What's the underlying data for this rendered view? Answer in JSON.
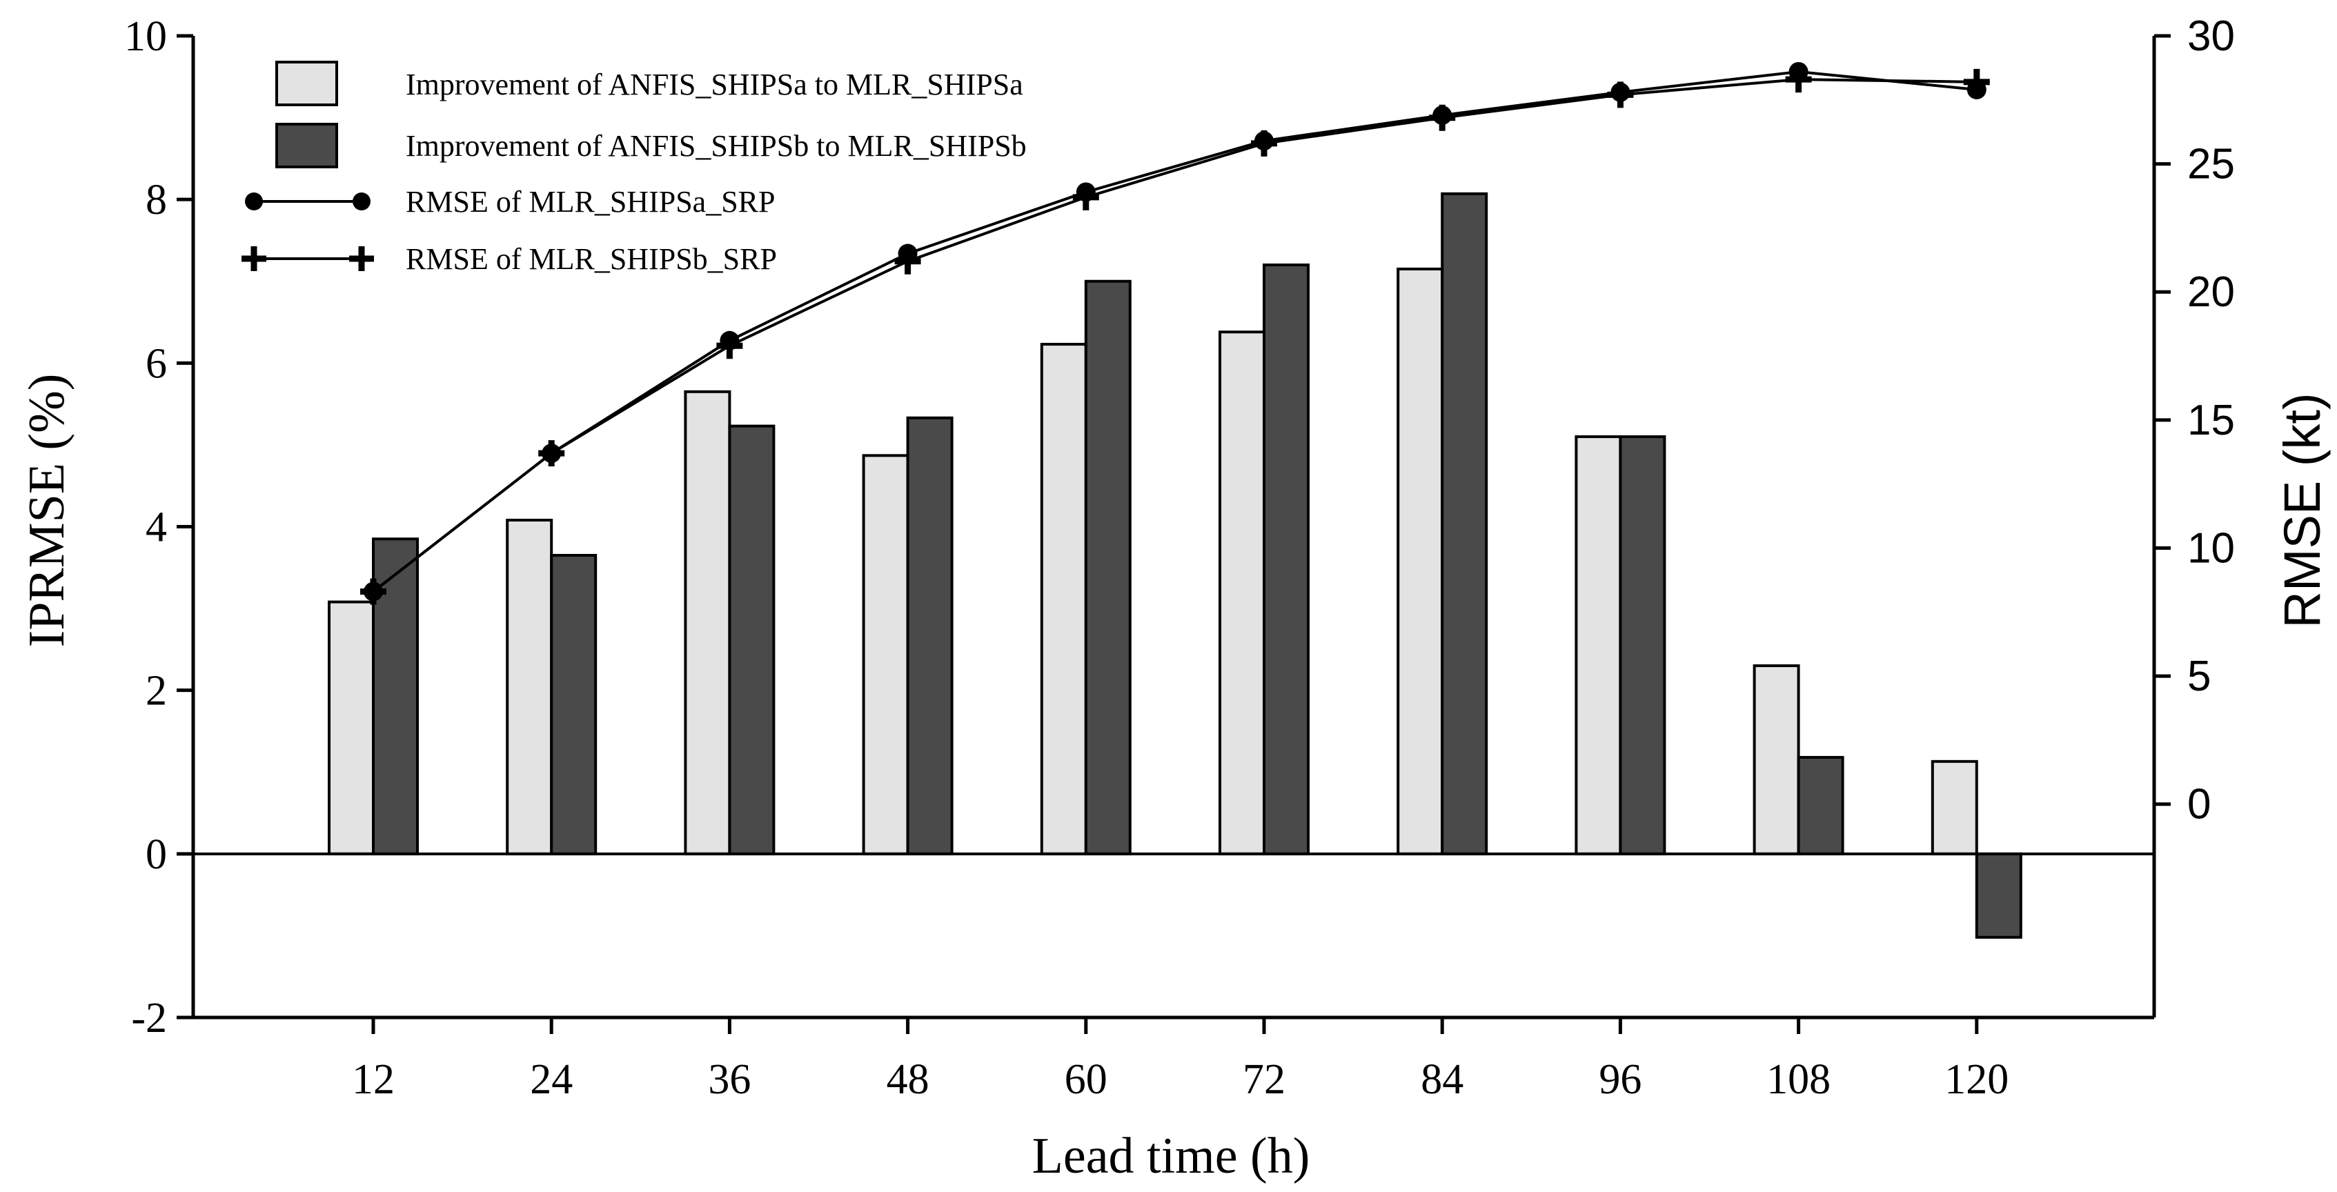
{
  "chart_data": {
    "type": "bar",
    "title": "",
    "xlabel": "Lead time (h)",
    "ylabel": "IPRMSE (%)",
    "y2label": "RMSE (kt)",
    "categories": [
      "12",
      "24",
      "36",
      "48",
      "60",
      "72",
      "84",
      "96",
      "108",
      "120"
    ],
    "ylim": [
      -2,
      10
    ],
    "yticks": [
      "-2",
      "0",
      "2",
      "4",
      "6",
      "8",
      "10"
    ],
    "y2lim": [
      -8.33,
      30
    ],
    "y2ticks": [
      "0",
      "5",
      "10",
      "15",
      "20",
      "25",
      "30"
    ],
    "grid": false,
    "legend_position": "top-left",
    "series": [
      {
        "name": "Improvement of ANFIS_SHIPSa to MLR_SHIPSa",
        "kind": "bar",
        "axis": "left",
        "color": "#e3e3e3",
        "values": [
          3.08,
          4.08,
          5.65,
          4.87,
          6.23,
          6.38,
          7.15,
          5.1,
          2.3,
          1.13
        ]
      },
      {
        "name": "Improvement of ANFIS_SHIPSb to MLR_SHIPSb",
        "kind": "bar",
        "axis": "right",
        "color": "#4a4a4a",
        "values": [
          3.85,
          3.65,
          5.23,
          5.33,
          7.0,
          7.2,
          8.07,
          5.1,
          1.18,
          -1.02
        ]
      },
      {
        "name": "RMSE of MLR_SHIPSa_SRP",
        "kind": "line",
        "marker": "circle",
        "axis": "right",
        "color": "#000000",
        "values": [
          8.3,
          13.7,
          18.1,
          21.5,
          23.9,
          25.9,
          26.9,
          27.8,
          28.6,
          27.9
        ]
      },
      {
        "name": "RMSE of MLR_SHIPSb_SRP",
        "kind": "line",
        "marker": "plus",
        "axis": "right",
        "color": "#000000",
        "values": [
          8.3,
          13.7,
          17.9,
          21.2,
          23.7,
          25.8,
          26.8,
          27.7,
          28.3,
          28.2
        ]
      }
    ]
  }
}
